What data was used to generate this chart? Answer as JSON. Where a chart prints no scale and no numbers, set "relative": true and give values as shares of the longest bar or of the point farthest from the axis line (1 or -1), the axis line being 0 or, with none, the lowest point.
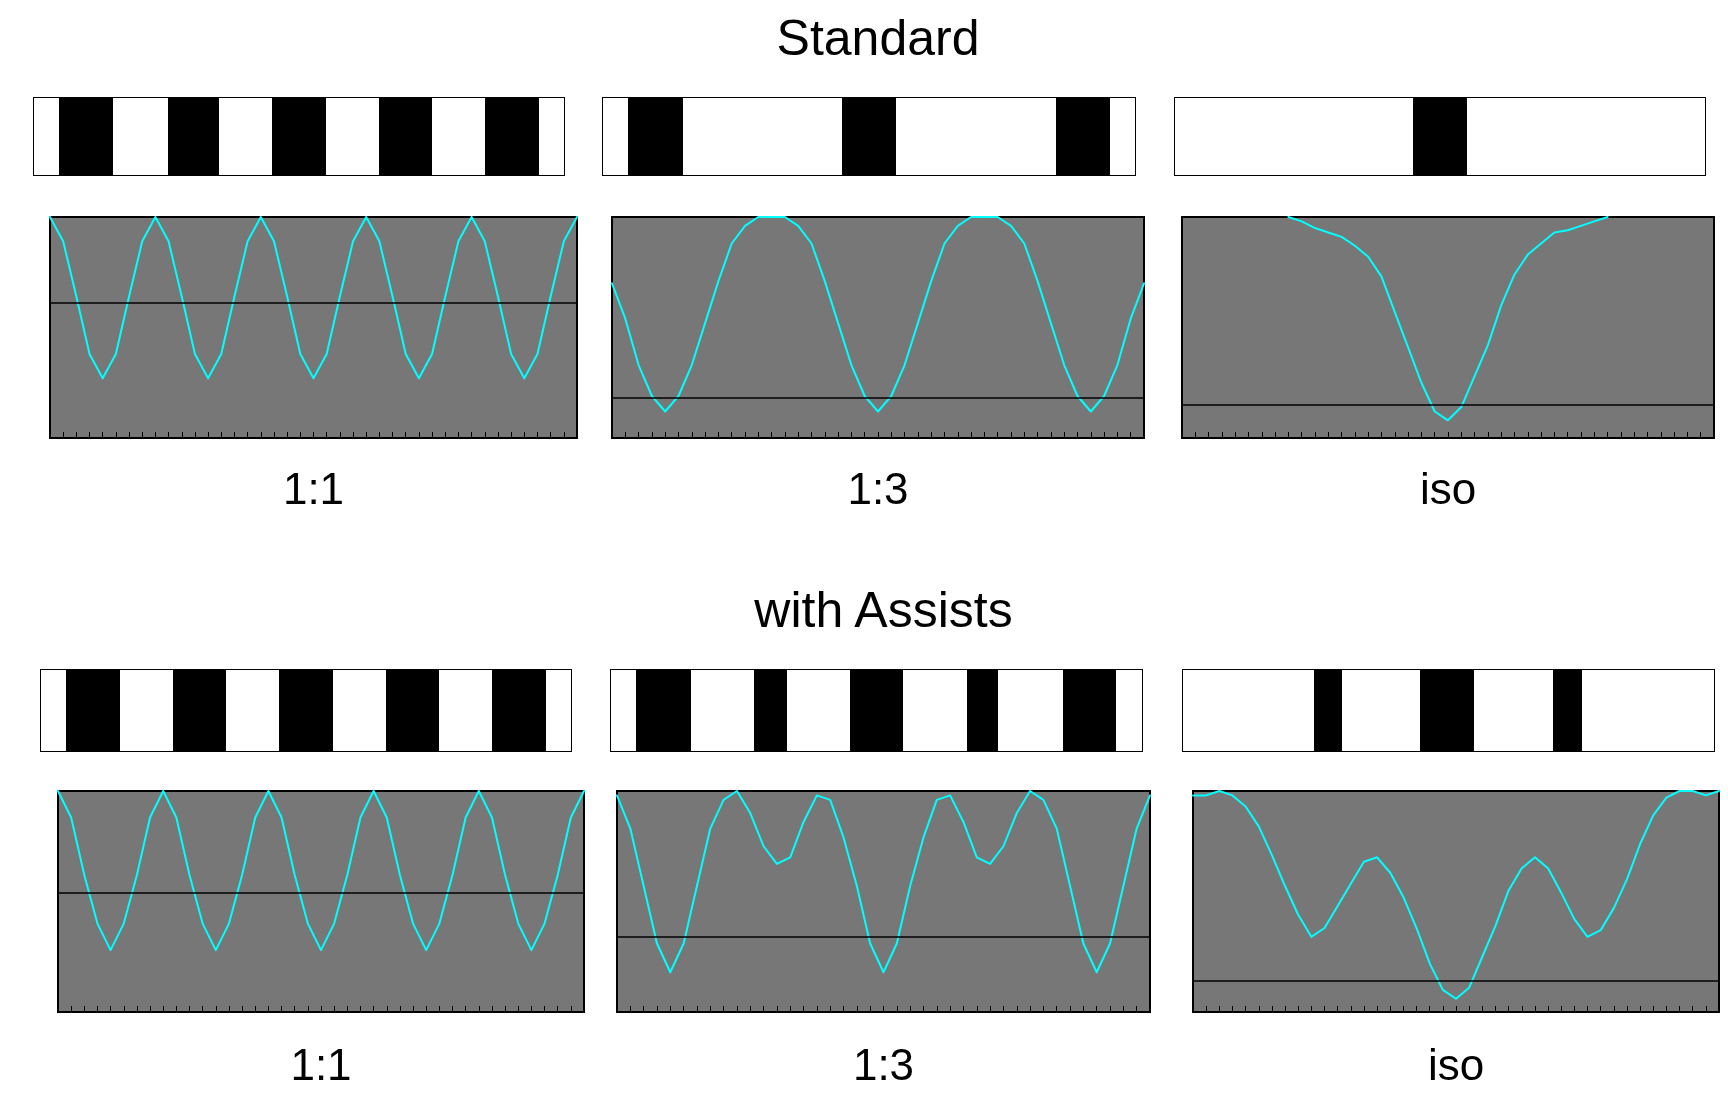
{
  "chart_data": [
    {
      "type": "line",
      "xlabel": "1:1",
      "relative": true,
      "categories": [
        null,
        null,
        null,
        null,
        null,
        null,
        null,
        null,
        null,
        null,
        null,
        null,
        null,
        null,
        null,
        null,
        null,
        null,
        null,
        null,
        null,
        null,
        null,
        null,
        null,
        null,
        null,
        null,
        null,
        null,
        null,
        null,
        null,
        null,
        null,
        null,
        null,
        null,
        null,
        null,
        null
      ],
      "series": [
        {
          "color": "#00ffff",
          "values": [
            1,
            0.89,
            0.64,
            0.38,
            0.27,
            0.38,
            0.64,
            0.89,
            1,
            0.89,
            0.64,
            0.38,
            0.27,
            0.38,
            0.64,
            0.89,
            1,
            0.89,
            0.64,
            0.38,
            0.27,
            0.38,
            0.64,
            0.89,
            1,
            0.89,
            0.64,
            0.38,
            0.27,
            0.38,
            0.64,
            0.89,
            1,
            0.89,
            0.64,
            0.38,
            0.27,
            0.38,
            0.64,
            0.89,
            1
          ]
        }
      ],
      "ref_lines": [
        {
          "axis": "y",
          "value": 0.61,
          "color": "#000000"
        }
      ]
    },
    {
      "type": "line",
      "title": "Standard",
      "xlabel": "1:3",
      "relative": true,
      "categories": [
        null,
        null,
        null,
        null,
        null,
        null,
        null,
        null,
        null,
        null,
        null,
        null,
        null,
        null,
        null,
        null,
        null,
        null,
        null,
        null,
        null,
        null,
        null,
        null,
        null,
        null,
        null,
        null,
        null,
        null,
        null,
        null,
        null,
        null,
        null,
        null,
        null,
        null,
        null,
        null,
        null
      ],
      "series": [
        {
          "color": "#00ffff",
          "values": [
            0.7,
            0.54,
            0.33,
            0.19,
            0.12,
            0.19,
            0.33,
            0.52,
            0.71,
            0.88,
            0.96,
            1,
            1,
            1,
            0.96,
            0.88,
            0.71,
            0.52,
            0.33,
            0.19,
            0.12,
            0.19,
            0.33,
            0.52,
            0.71,
            0.88,
            0.96,
            1,
            1,
            1,
            0.96,
            0.88,
            0.71,
            0.52,
            0.33,
            0.19,
            0.12,
            0.19,
            0.33,
            0.54,
            0.7
          ]
        }
      ],
      "ref_lines": [
        {
          "axis": "y",
          "value": 0.18,
          "color": "#000000"
        }
      ]
    },
    {
      "type": "line",
      "xlabel": "iso",
      "relative": true,
      "categories": [
        null,
        null,
        null,
        null,
        null,
        null,
        null,
        null,
        null,
        null,
        null,
        null,
        null,
        null,
        null,
        null,
        null,
        null,
        null,
        null,
        null,
        null,
        null,
        null,
        null,
        null,
        null,
        null,
        null,
        null,
        null,
        null,
        null,
        null,
        null,
        null,
        null,
        null,
        null,
        null,
        null
      ],
      "series": [
        {
          "color": "#00ffff",
          "values": [
            null,
            null,
            null,
            null,
            null,
            null,
            null,
            null,
            1,
            0.98,
            0.95,
            0.93,
            0.91,
            0.87,
            0.82,
            0.73,
            0.57,
            0.41,
            0.25,
            0.12,
            0.08,
            0.14,
            0.28,
            0.42,
            0.6,
            0.74,
            0.83,
            0.88,
            0.93,
            0.94,
            0.96,
            0.98,
            1,
            null,
            null,
            null,
            null,
            null,
            null,
            null,
            null
          ]
        }
      ],
      "ref_lines": [
        {
          "axis": "y",
          "value": 0.15,
          "color": "#000000"
        }
      ]
    },
    {
      "type": "line",
      "xlabel": "1:1",
      "relative": true,
      "categories": [
        null,
        null,
        null,
        null,
        null,
        null,
        null,
        null,
        null,
        null,
        null,
        null,
        null,
        null,
        null,
        null,
        null,
        null,
        null,
        null,
        null,
        null,
        null,
        null,
        null,
        null,
        null,
        null,
        null,
        null,
        null,
        null,
        null,
        null,
        null,
        null,
        null,
        null,
        null,
        null,
        null
      ],
      "series": [
        {
          "color": "#00ffff",
          "values": [
            1,
            0.88,
            0.62,
            0.4,
            0.28,
            0.4,
            0.62,
            0.88,
            1,
            0.88,
            0.62,
            0.4,
            0.28,
            0.4,
            0.62,
            0.88,
            1,
            0.88,
            0.62,
            0.4,
            0.28,
            0.4,
            0.62,
            0.88,
            1,
            0.88,
            0.62,
            0.4,
            0.28,
            0.4,
            0.62,
            0.88,
            1,
            0.88,
            0.62,
            0.4,
            0.28,
            0.4,
            0.62,
            0.88,
            1
          ]
        }
      ],
      "ref_lines": [
        {
          "axis": "y",
          "value": 0.54,
          "color": "#000000"
        }
      ]
    },
    {
      "type": "line",
      "title": "with Assists",
      "xlabel": "1:3",
      "relative": true,
      "categories": [
        null,
        null,
        null,
        null,
        null,
        null,
        null,
        null,
        null,
        null,
        null,
        null,
        null,
        null,
        null,
        null,
        null,
        null,
        null,
        null,
        null,
        null,
        null,
        null,
        null,
        null,
        null,
        null,
        null,
        null,
        null,
        null,
        null,
        null,
        null,
        null,
        null,
        null,
        null,
        null,
        null
      ],
      "series": [
        {
          "color": "#00ffff",
          "values": [
            0.98,
            0.83,
            0.57,
            0.31,
            0.18,
            0.31,
            0.57,
            0.83,
            0.96,
            1,
            0.9,
            0.75,
            0.67,
            0.7,
            0.86,
            0.98,
            0.96,
            0.79,
            0.57,
            0.31,
            0.18,
            0.31,
            0.57,
            0.79,
            0.96,
            0.98,
            0.86,
            0.7,
            0.67,
            0.75,
            0.9,
            1,
            0.96,
            0.83,
            0.57,
            0.31,
            0.18,
            0.31,
            0.57,
            0.83,
            0.98
          ]
        }
      ],
      "ref_lines": [
        {
          "axis": "y",
          "value": 0.34,
          "color": "#000000"
        }
      ]
    },
    {
      "type": "line",
      "xlabel": "iso",
      "relative": true,
      "categories": [
        null,
        null,
        null,
        null,
        null,
        null,
        null,
        null,
        null,
        null,
        null,
        null,
        null,
        null,
        null,
        null,
        null,
        null,
        null,
        null,
        null,
        null,
        null,
        null,
        null,
        null,
        null,
        null,
        null,
        null,
        null,
        null,
        null,
        null,
        null,
        null,
        null,
        null,
        null,
        null,
        null
      ],
      "series": [
        {
          "color": "#00ffff",
          "values": [
            0.98,
            0.98,
            1,
            0.98,
            0.93,
            0.84,
            0.71,
            0.57,
            0.44,
            0.34,
            0.38,
            0.48,
            0.58,
            0.68,
            0.7,
            0.63,
            0.52,
            0.38,
            0.22,
            0.1,
            0.06,
            0.11,
            0.25,
            0.39,
            0.55,
            0.65,
            0.7,
            0.65,
            0.54,
            0.42,
            0.34,
            0.37,
            0.47,
            0.6,
            0.76,
            0.89,
            0.97,
            1,
            1,
            0.98,
            1
          ]
        }
      ],
      "ref_lines": [
        {
          "axis": "y",
          "value": 0.14,
          "color": "#000000"
        }
      ]
    }
  ]
}
